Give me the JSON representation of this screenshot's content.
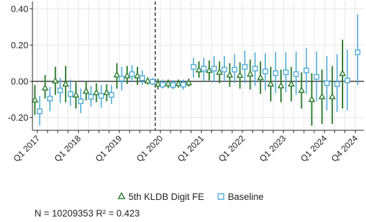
{
  "chart_data": {
    "type": "scatter",
    "title": "",
    "xlabel": "",
    "ylabel": "",
    "ylim": [
      -0.27,
      0.43
    ],
    "yticks": [
      -0.2,
      0.0,
      0.2,
      0.4
    ],
    "ytick_labels": [
      "-0.20",
      "0.00",
      "0.20",
      "0.40"
    ],
    "x_categories": [
      "Q1 2017",
      "Q2 2017",
      "Q3 2017",
      "Q4 2017",
      "Q1 2018",
      "Q2 2018",
      "Q3 2018",
      "Q4 2018",
      "Q1 2019",
      "Q2 2019",
      "Q3 2019",
      "Q4 2019",
      "Q1 2020",
      "Q2 2020",
      "Q3 2020",
      "Q4 2020",
      "Q1 2021",
      "Q2 2021",
      "Q3 2021",
      "Q4 2021",
      "Q1 2022",
      "Q2 2022",
      "Q3 2022",
      "Q4 2022",
      "Q1 2023",
      "Q2 2023",
      "Q3 2023",
      "Q4 2023",
      "Q1 2024",
      "Q2 2024",
      "Q3 2024",
      "Q4 2024"
    ],
    "x_tick_labels": [
      "Q1 2017",
      "Q1 2018",
      "Q1 2019",
      "Q1 2020",
      "Q1 2021",
      "Q1 2022",
      "Q1 2023",
      "Q1 2024",
      "Q4 2024"
    ],
    "reference_lines": {
      "horizontal_y": 0.0,
      "vertical_dashed_at": "Q1 2020"
    },
    "grid": true,
    "legend_position": "bottom",
    "series": [
      {
        "name": "5th KLDB Digit FE",
        "marker": "triangle",
        "color": "#2e7d32",
        "values": [
          -0.103,
          -0.037,
          0.002,
          -0.015,
          -0.076,
          -0.055,
          -0.063,
          -0.062,
          0.035,
          0.03,
          0.03,
          0.002,
          -0.015,
          -0.013,
          -0.013,
          -0.008,
          0.063,
          0.06,
          0.05,
          0.035,
          0.033,
          0.04,
          0.02,
          -0.015,
          -0.025,
          -0.015,
          -0.05,
          -0.1,
          -0.085,
          -0.085,
          0.043,
          0.0
        ],
        "ci_low": [
          -0.185,
          -0.095,
          -0.075,
          -0.115,
          -0.15,
          -0.105,
          -0.115,
          -0.11,
          -0.04,
          -0.015,
          -0.02,
          -0.018,
          -0.045,
          -0.038,
          -0.035,
          -0.03,
          0.02,
          0.005,
          -0.01,
          -0.03,
          -0.04,
          -0.045,
          -0.07,
          -0.11,
          -0.115,
          -0.11,
          -0.15,
          -0.245,
          -0.235,
          -0.235,
          -0.15,
          0.0
        ],
        "ci_high": [
          -0.02,
          0.035,
          0.08,
          0.085,
          -0.005,
          0.0,
          -0.01,
          -0.015,
          0.1,
          0.085,
          0.08,
          0.02,
          0.015,
          0.01,
          0.01,
          0.015,
          0.11,
          0.115,
          0.11,
          0.1,
          0.105,
          0.12,
          0.11,
          0.08,
          0.065,
          0.08,
          0.05,
          0.045,
          0.065,
          0.085,
          0.23,
          0.0
        ]
      },
      {
        "name": "Baseline",
        "marker": "square",
        "color": "#4aaad6",
        "values": [
          -0.165,
          -0.095,
          -0.05,
          -0.07,
          -0.11,
          -0.085,
          -0.08,
          -0.075,
          0.015,
          0.04,
          0.018,
          -0.002,
          -0.018,
          -0.02,
          -0.018,
          0.08,
          0.07,
          0.07,
          0.065,
          0.065,
          0.08,
          0.07,
          0.055,
          0.045,
          0.05,
          0.04,
          0.06,
          0.025,
          -0.01,
          -0.015,
          0.005,
          0.16
        ],
        "ci_low": [
          -0.245,
          -0.165,
          -0.12,
          -0.135,
          -0.175,
          -0.14,
          -0.145,
          -0.125,
          -0.05,
          -0.005,
          -0.02,
          -0.02,
          -0.04,
          -0.045,
          -0.045,
          0.02,
          0.0,
          -0.005,
          -0.005,
          -0.01,
          -0.01,
          -0.025,
          -0.05,
          -0.065,
          -0.06,
          -0.075,
          -0.07,
          -0.11,
          -0.16,
          -0.17,
          -0.16,
          -0.02
        ],
        "ci_high": [
          -0.08,
          -0.03,
          0.02,
          0.01,
          -0.04,
          -0.025,
          -0.02,
          -0.02,
          0.08,
          0.09,
          0.06,
          0.02,
          0.01,
          0.008,
          0.01,
          0.13,
          0.13,
          0.14,
          0.14,
          0.15,
          0.17,
          0.16,
          0.155,
          0.16,
          0.16,
          0.165,
          0.185,
          0.165,
          0.14,
          0.15,
          0.175,
          0.37
        ]
      }
    ]
  },
  "footer": {
    "stats_text": "N = 10209353   R² = 0.423"
  }
}
